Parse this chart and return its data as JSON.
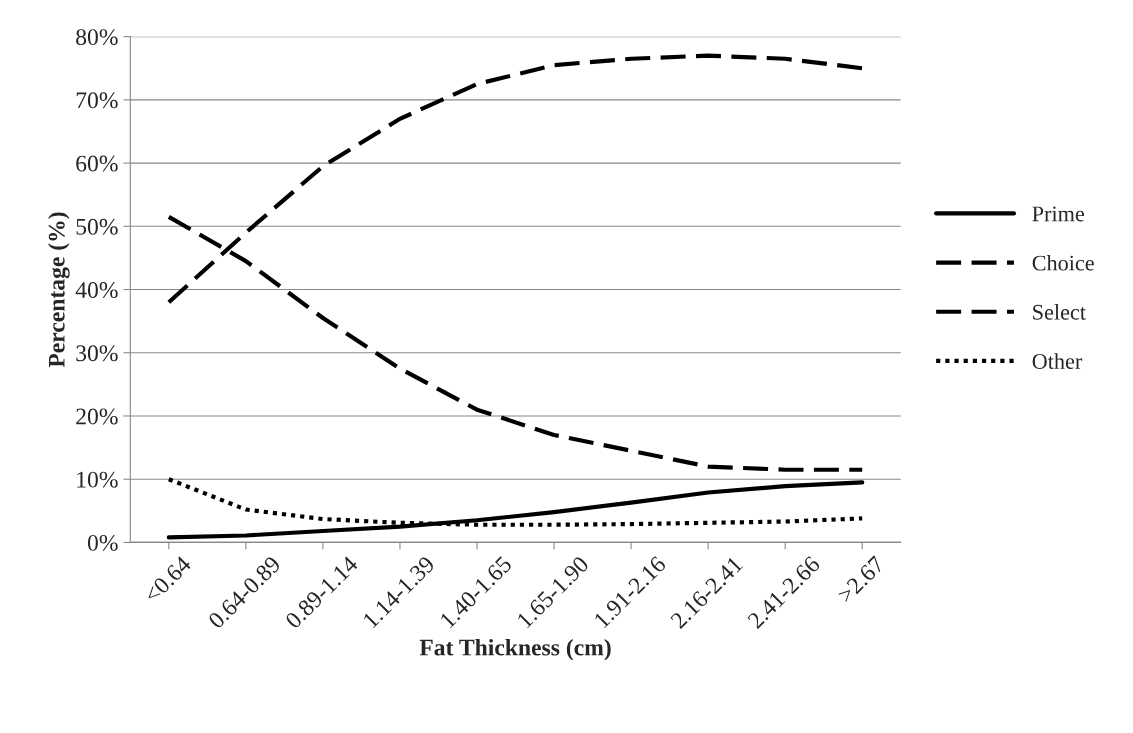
{
  "chart_data": {
    "type": "line",
    "xlabel": "Fat Thickness (cm)",
    "ylabel": "Percentage (%)",
    "categories": [
      "<0.64",
      "0.64-0.89",
      "0.89-1.14",
      "1.14-1.39",
      "1.40-1.65",
      "1.65-1.90",
      "1.91-2.16",
      "2.16-2.41",
      "2.41-2.66",
      ">2.67"
    ],
    "series": [
      {
        "name": "Prime",
        "color": "#000000",
        "line_style": "solid",
        "values": [
          0.8,
          1.1,
          1.8,
          2.5,
          3.5,
          4.8,
          6.3,
          7.9,
          8.9,
          9.5
        ]
      },
      {
        "name": "Choice",
        "color": "#000000",
        "line_style": "dashed",
        "values": [
          38,
          49,
          59.5,
          67,
          72.5,
          75.5,
          76.5,
          77,
          76.5,
          75
        ]
      },
      {
        "name": "Select",
        "color": "#000000",
        "line_style": "dashed",
        "values": [
          51.5,
          44.5,
          35.5,
          27.5,
          21,
          17,
          14.5,
          12,
          11.5,
          11.5
        ]
      },
      {
        "name": "Other",
        "color": "#000000",
        "line_style": "dotted",
        "values": [
          10,
          5.2,
          3.7,
          3.1,
          2.8,
          2.8,
          2.9,
          3.1,
          3.3,
          3.8
        ]
      }
    ],
    "ylim": [
      0,
      80
    ],
    "yticks": [
      {
        "value": 0,
        "label": "0%"
      },
      {
        "value": 10,
        "label": "10%"
      },
      {
        "value": 20,
        "label": "20%"
      },
      {
        "value": 30,
        "label": "30%"
      },
      {
        "value": 40,
        "label": "40%"
      },
      {
        "value": 50,
        "label": "50%"
      },
      {
        "value": 60,
        "label": "60%"
      },
      {
        "value": 70,
        "label": "70%"
      },
      {
        "value": 80,
        "label": "80%"
      }
    ],
    "grid": "y",
    "legend": "right",
    "marker": "none"
  }
}
